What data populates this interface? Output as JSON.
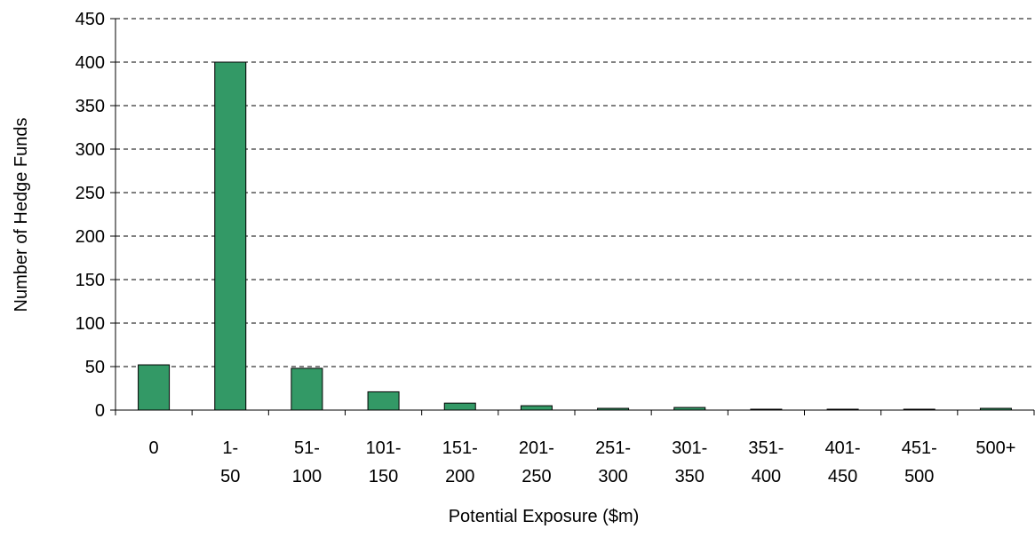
{
  "chart_data": {
    "type": "bar",
    "x_label": "Potential Exposure ($m)",
    "y_label": "Number of Hedge Funds",
    "categories": [
      "0",
      "1-50",
      "51-100",
      "101-150",
      "151-200",
      "201-250",
      "251-300",
      "301-350",
      "351-400",
      "401-450",
      "451-500",
      "500+"
    ],
    "values": [
      52,
      400,
      48,
      21,
      8,
      5,
      2,
      3,
      1,
      1,
      1,
      2
    ],
    "color": "#339966",
    "ylim": [
      0,
      450
    ],
    "yticks": [
      0,
      50,
      100,
      150,
      200,
      250,
      300,
      350,
      400,
      450
    ],
    "grid": true
  }
}
